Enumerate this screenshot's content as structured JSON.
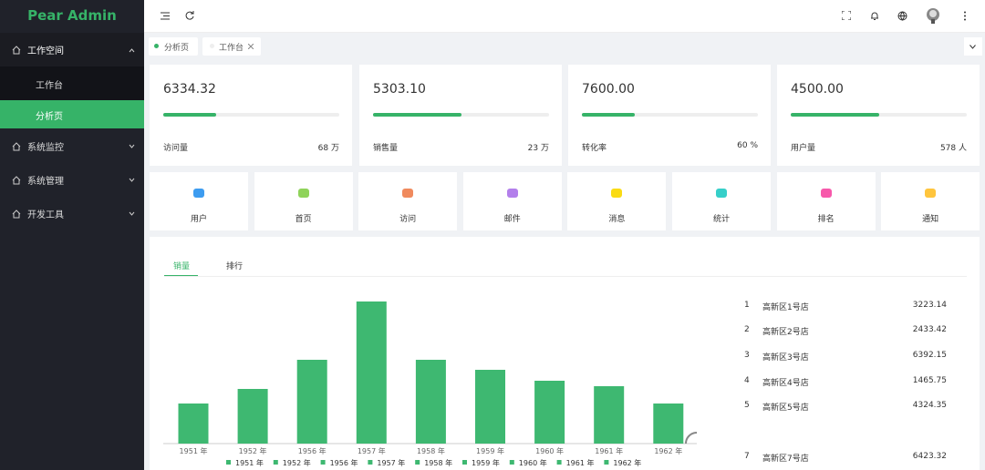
{
  "sidebar": {
    "logo": "Pear Admin",
    "menu": [
      {
        "label": "工作空间",
        "children": [
          "工作台",
          "分析页"
        ]
      },
      {
        "label": "系统监控"
      },
      {
        "label": "系统管理"
      },
      {
        "label": "开发工具"
      }
    ]
  },
  "tabs": [
    "分析页",
    "工作台"
  ],
  "stats": [
    {
      "value": "6334.32",
      "label": "访问量",
      "extra": "68 万",
      "progress": 30
    },
    {
      "value": "5303.10",
      "label": "销售量",
      "extra": "23 万",
      "progress": 50
    },
    {
      "value": "7600.00",
      "label": "转化率",
      "extra": "60 %",
      "progress": 30
    },
    {
      "value": "4500.00",
      "label": "用户量",
      "extra": "578 人",
      "progress": 50
    }
  ],
  "shortcuts": [
    {
      "label": "用户",
      "color": "#3d9cf0"
    },
    {
      "label": "首页",
      "color": "#8fd35a"
    },
    {
      "label": "访问",
      "color": "#f08a5d"
    },
    {
      "label": "邮件",
      "color": "#b37feb"
    },
    {
      "label": "消息",
      "color": "#fadb14"
    },
    {
      "label": "统计",
      "color": "#36cfc9"
    },
    {
      "label": "排名",
      "color": "#f759ab"
    },
    {
      "label": "通知",
      "color": "#ffc53d"
    }
  ],
  "panel": {
    "tabs": [
      "销量",
      "排行"
    ],
    "ranking": [
      {
        "rank": 1,
        "name": "高新区1号店",
        "value": 3223.14
      },
      {
        "rank": 2,
        "name": "高新区2号店",
        "value": 2433.42
      },
      {
        "rank": 3,
        "name": "高新区3号店",
        "value": 6392.15
      },
      {
        "rank": 4,
        "name": "高新区4号店",
        "value": 1465.75
      },
      {
        "rank": 5,
        "name": "高新区5号店",
        "value": 4324.35
      },
      {
        "rank": 7,
        "name": "高新区7号店",
        "value": 6423.32
      }
    ]
  },
  "chart_data": {
    "type": "bar",
    "categories": [
      "1951 年",
      "1952 年",
      "1956 年",
      "1957 年",
      "1958 年",
      "1959 年",
      "1960 年",
      "1961 年",
      "1962 年"
    ],
    "values": [
      44,
      60,
      92,
      156,
      92,
      81,
      69,
      63,
      44
    ],
    "color": "#3eb871"
  }
}
